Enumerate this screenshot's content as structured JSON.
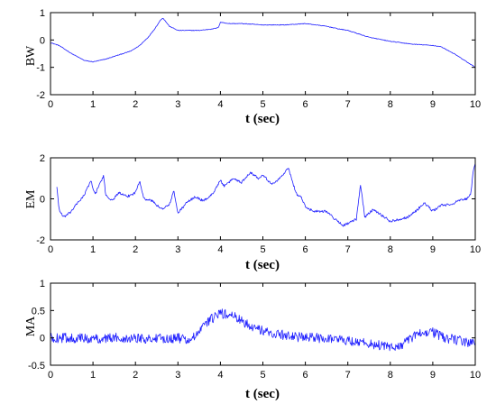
{
  "colors": {
    "series": "#1f1fff",
    "axis": "#000000"
  },
  "chart_data": [
    {
      "type": "line",
      "title": "",
      "xlabel": "t (sec)",
      "ylabel": "BW",
      "xlim": [
        0,
        10
      ],
      "ylim": [
        -2,
        1
      ],
      "x_ticks": [
        0,
        1,
        2,
        3,
        4,
        5,
        6,
        7,
        8,
        9,
        10
      ],
      "y_ticks": [
        -2,
        -1,
        0,
        1
      ],
      "grid": false,
      "noise": 0.012,
      "series": [
        {
          "x": [
            0,
            0.2,
            0.5,
            0.8,
            1.0,
            1.3,
            1.6,
            1.9,
            2.1,
            2.3,
            2.45,
            2.6,
            2.65,
            2.8,
            3.0,
            3.2,
            3.5,
            3.8,
            3.95,
            4.0,
            4.2,
            4.5,
            5.0,
            5.5,
            6.0,
            6.5,
            6.8,
            7.0,
            7.5,
            8.0,
            8.5,
            9.0,
            9.2,
            9.5,
            9.8,
            10.0
          ],
          "y": [
            -0.1,
            -0.2,
            -0.5,
            -0.75,
            -0.8,
            -0.7,
            -0.55,
            -0.4,
            -0.2,
            0.1,
            0.4,
            0.75,
            0.8,
            0.5,
            0.35,
            0.35,
            0.35,
            0.4,
            0.45,
            0.65,
            0.6,
            0.6,
            0.55,
            0.55,
            0.6,
            0.5,
            0.4,
            0.35,
            0.1,
            -0.05,
            -0.15,
            -0.2,
            -0.25,
            -0.5,
            -0.8,
            -1.0
          ]
        }
      ]
    },
    {
      "type": "line",
      "title": "",
      "xlabel": "t (sec)",
      "ylabel": "EM",
      "xlim": [
        0,
        10
      ],
      "ylim": [
        -2,
        2
      ],
      "x_ticks": [
        0,
        1,
        2,
        3,
        4,
        5,
        6,
        7,
        8,
        9,
        10
      ],
      "y_ticks": [
        -2,
        0,
        2
      ],
      "grid": false,
      "noise": 0.06,
      "series": [
        {
          "x": [
            0.15,
            0.2,
            0.3,
            0.45,
            0.6,
            0.8,
            0.95,
            1.05,
            1.15,
            1.25,
            1.3,
            1.45,
            1.6,
            1.8,
            2.0,
            2.1,
            2.2,
            2.4,
            2.6,
            2.8,
            2.9,
            3.0,
            3.2,
            3.4,
            3.6,
            3.8,
            4.0,
            4.1,
            4.3,
            4.5,
            4.7,
            4.9,
            5.0,
            5.2,
            5.4,
            5.6,
            5.7,
            5.8,
            5.9,
            6.0,
            6.2,
            6.5,
            6.7,
            6.9,
            7.0,
            7.2,
            7.3,
            7.4,
            7.6,
            7.8,
            8.0,
            8.2,
            8.4,
            8.6,
            8.8,
            9.0,
            9.2,
            9.4,
            9.6,
            9.8,
            9.9,
            9.95,
            10.0
          ],
          "y": [
            0.6,
            -0.5,
            -0.9,
            -0.7,
            -0.3,
            0.2,
            0.9,
            0.2,
            0.7,
            1.1,
            0.2,
            -0.1,
            0.3,
            0.1,
            0.3,
            0.9,
            0.0,
            -0.1,
            -0.5,
            -0.3,
            0.4,
            -0.7,
            -0.2,
            0.1,
            -0.1,
            0.2,
            0.9,
            0.6,
            1.0,
            0.8,
            1.3,
            1.0,
            1.2,
            0.7,
            1.0,
            1.5,
            0.8,
            0.2,
            0.1,
            -0.4,
            -0.6,
            -0.6,
            -1.0,
            -1.3,
            -1.2,
            -1.0,
            0.7,
            -0.9,
            -0.5,
            -0.8,
            -1.1,
            -1.0,
            -0.9,
            -0.6,
            -0.2,
            -0.6,
            -0.3,
            -0.3,
            -0.1,
            0.0,
            0.3,
            1.3,
            1.7
          ]
        }
      ]
    },
    {
      "type": "line",
      "title": "",
      "xlabel": "t (sec)",
      "ylabel": "MA",
      "xlim": [
        0,
        10
      ],
      "ylim": [
        -0.5,
        1
      ],
      "x_ticks": [
        0,
        1,
        2,
        3,
        4,
        5,
        6,
        7,
        8,
        9,
        10
      ],
      "y_ticks": [
        -0.5,
        0,
        0.5,
        1
      ],
      "grid": false,
      "noise": 0.09,
      "series": [
        {
          "x": [
            0,
            0.5,
            1.0,
            1.5,
            2.0,
            2.5,
            3.0,
            3.3,
            3.5,
            3.7,
            3.9,
            4.0,
            4.3,
            4.5,
            4.8,
            5.0,
            5.5,
            6.0,
            6.5,
            7.0,
            7.5,
            8.0,
            8.3,
            8.6,
            8.8,
            9.0,
            9.3,
            9.6,
            10.0
          ],
          "y": [
            0.0,
            0.0,
            -0.02,
            0.0,
            0.0,
            -0.02,
            0.0,
            -0.05,
            0.1,
            0.3,
            0.4,
            0.45,
            0.4,
            0.3,
            0.2,
            0.12,
            0.05,
            0.0,
            0.0,
            -0.05,
            -0.1,
            -0.18,
            -0.12,
            0.05,
            0.12,
            0.1,
            0.0,
            -0.05,
            -0.1
          ]
        }
      ]
    }
  ]
}
